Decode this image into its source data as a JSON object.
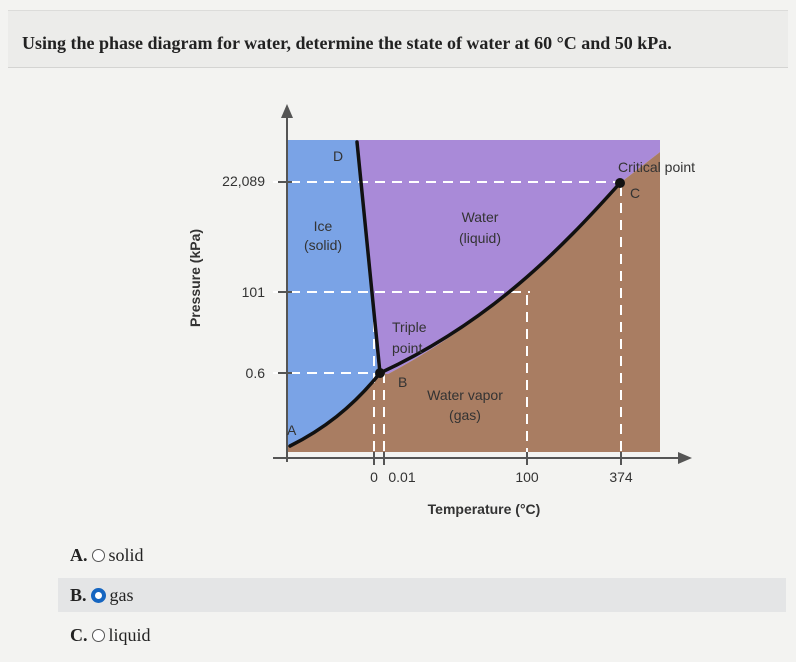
{
  "question": {
    "text": "Using the phase diagram for water, determine the state of water at 60 °C and 50 kPa."
  },
  "diagram": {
    "y_axis_label": "Pressure (kPa)",
    "x_axis_label": "Temperature (°C)",
    "y_ticks": [
      "22,089",
      "101",
      "0.6"
    ],
    "x_ticks": [
      "0",
      "0.01",
      "100",
      "374"
    ],
    "regions": {
      "solid_line1": "Ice",
      "solid_line2": "(solid)",
      "liquid_line1": "Water",
      "liquid_line2": "(liquid)",
      "gas_line1": "Water vapor",
      "gas_line2": "(gas)"
    },
    "points": {
      "A": "A",
      "B": "B",
      "C": "C",
      "D": "D",
      "triple_line1": "Triple",
      "triple_line2": "point",
      "critical": "Critical point"
    },
    "colors": {
      "solid": "#7aa3e6",
      "liquid": "#a98ad8",
      "gas": "#a97d62",
      "curve": "#111111",
      "dashed": "#ffffff"
    }
  },
  "answers": {
    "selected": "B",
    "options": [
      {
        "letter": "A.",
        "text": "solid"
      },
      {
        "letter": "B.",
        "text": "gas"
      },
      {
        "letter": "C.",
        "text": "liquid"
      }
    ]
  }
}
